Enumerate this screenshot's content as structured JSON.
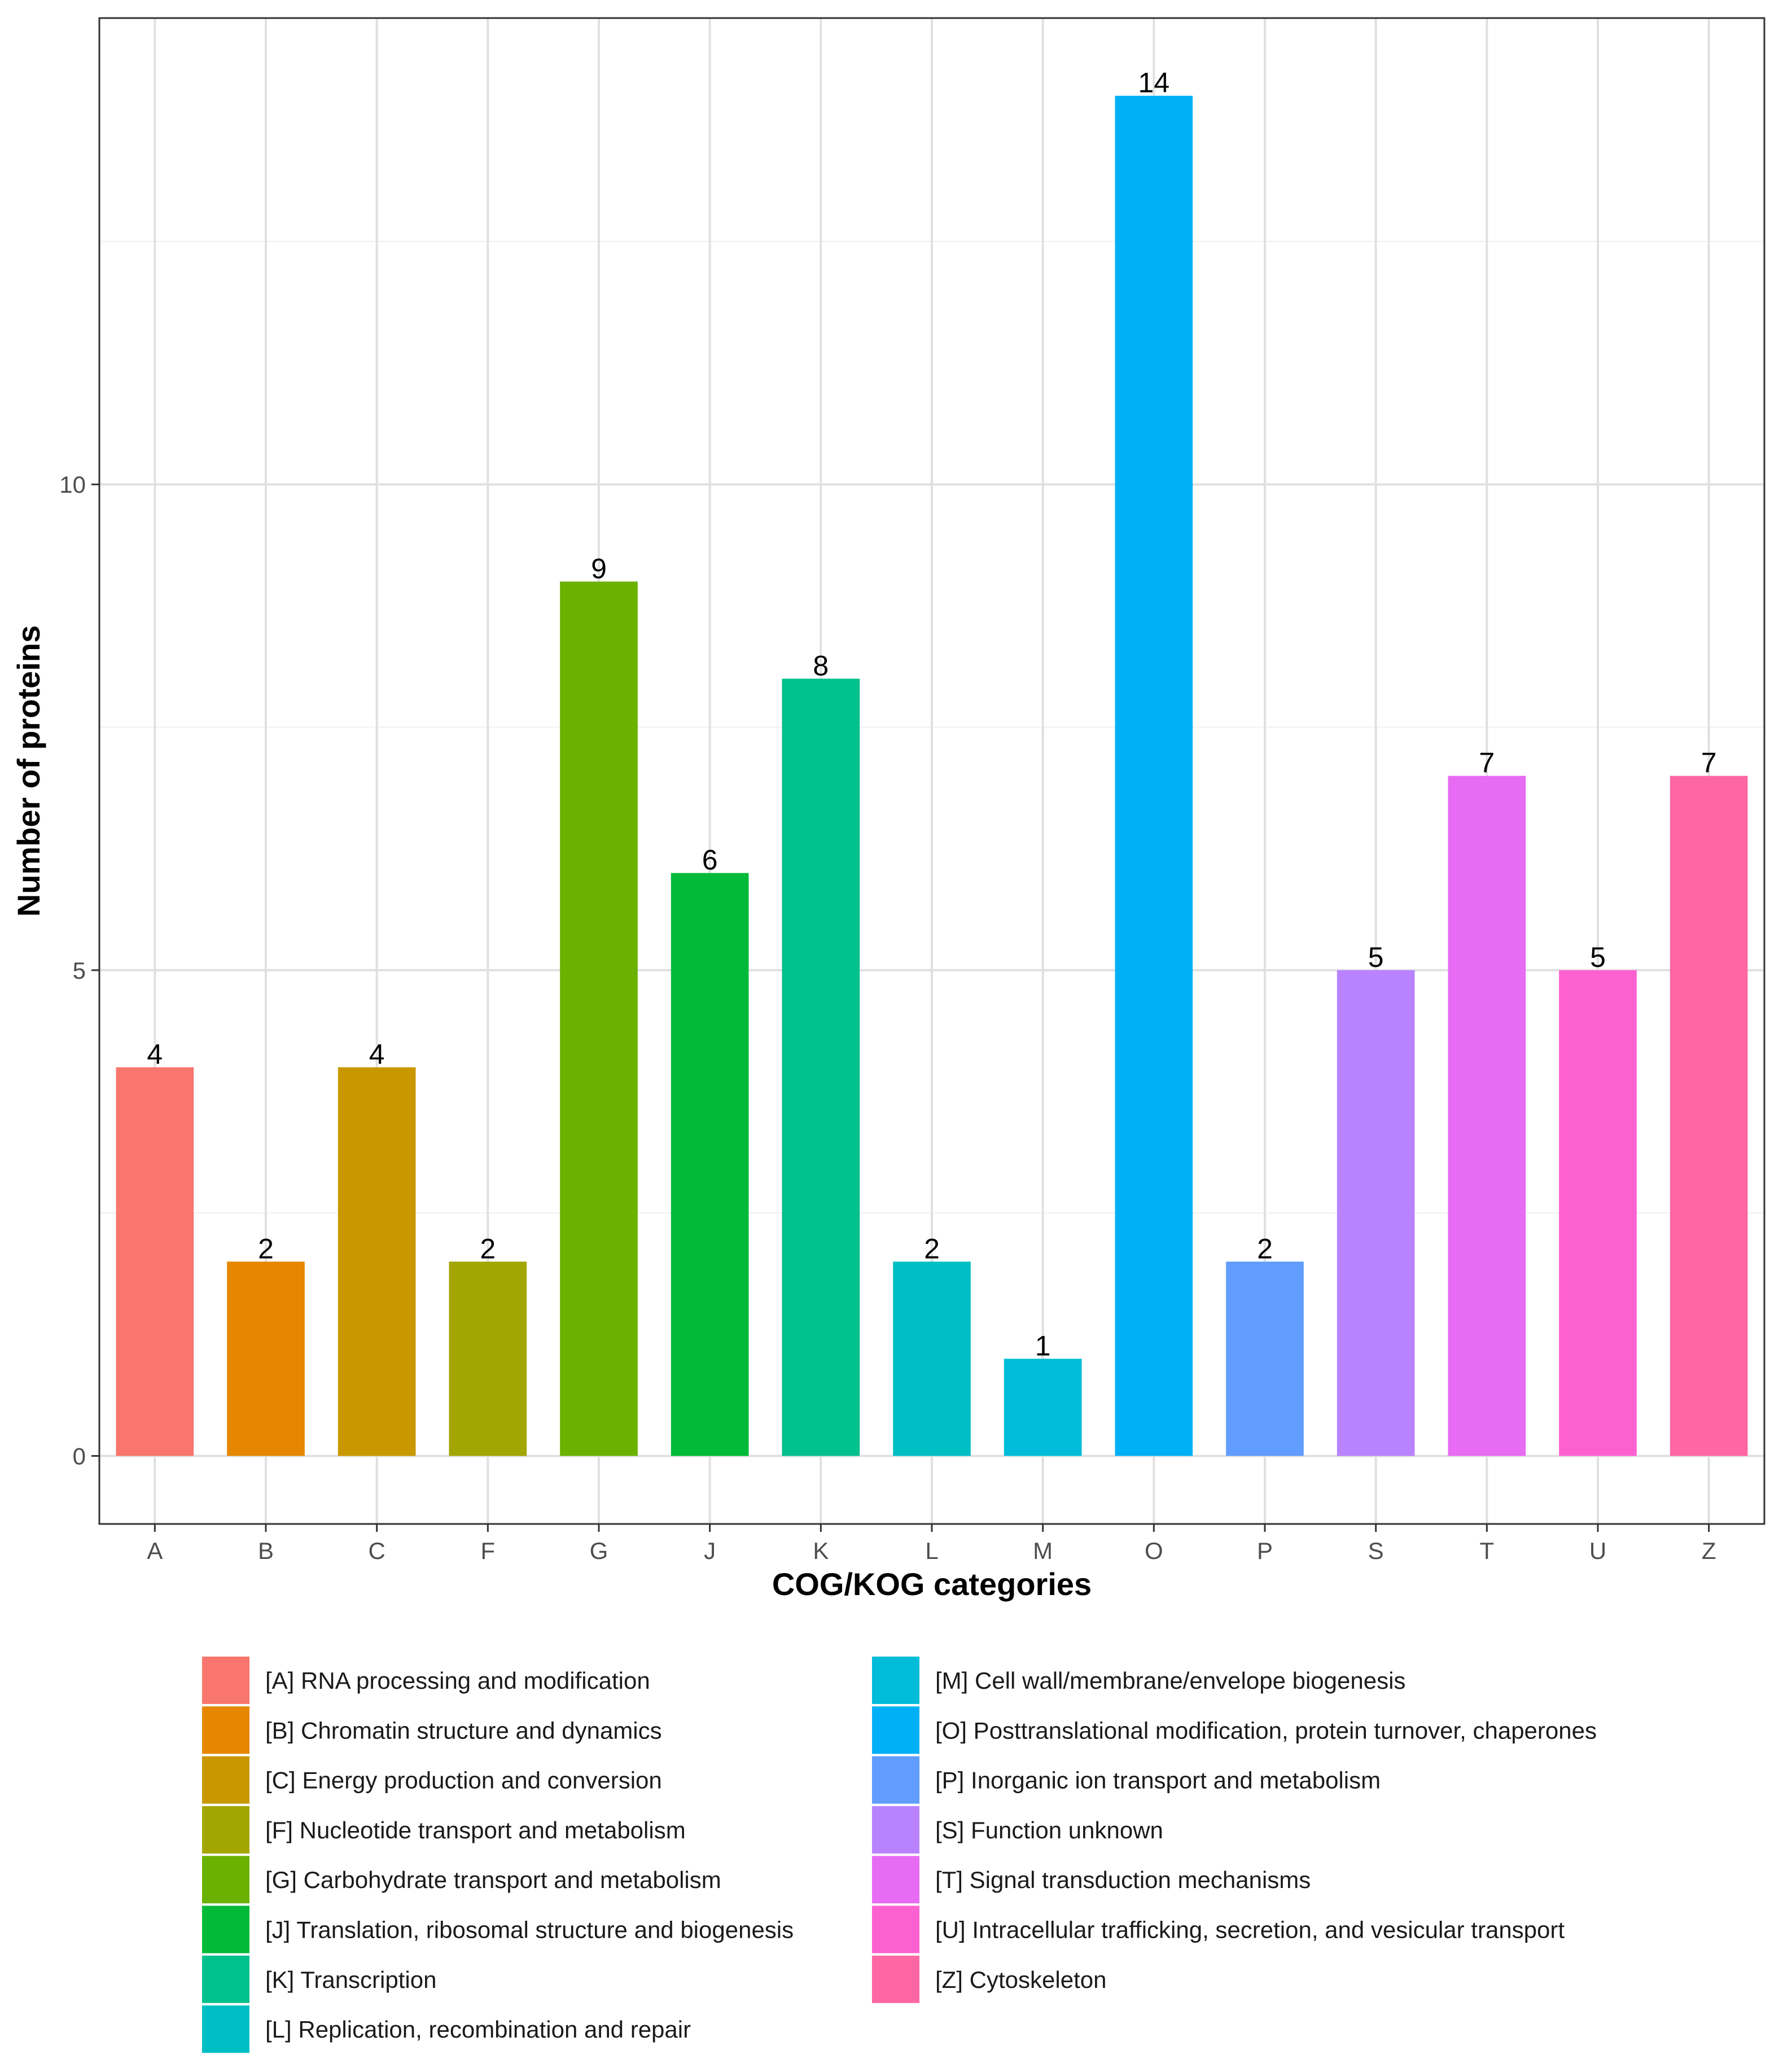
{
  "chart_data": {
    "type": "bar",
    "xlabel": "COG/KOG categories",
    "ylabel": "Number of proteins",
    "ylim": [
      -0.7,
      14.8
    ],
    "yticks": [
      0,
      5,
      10
    ],
    "grid": true,
    "legend_position": "bottom",
    "categories": [
      "A",
      "B",
      "C",
      "F",
      "G",
      "J",
      "K",
      "L",
      "M",
      "O",
      "P",
      "S",
      "T",
      "U",
      "Z"
    ],
    "values": [
      4,
      2,
      4,
      2,
      9,
      6,
      8,
      2,
      1,
      14,
      2,
      5,
      7,
      5,
      7
    ],
    "colors": [
      "#F8766D",
      "#E58700",
      "#C99800",
      "#A3A500",
      "#6BB100",
      "#00BA38",
      "#00C08B",
      "#00BFC4",
      "#00BCD8",
      "#00B0F6",
      "#619CFF",
      "#B983FF",
      "#E76BF3",
      "#FD61D1",
      "#FF67A4"
    ],
    "legend": [
      "[A] RNA processing and modification",
      "[B] Chromatin structure and dynamics",
      "[C] Energy production and conversion",
      "[F] Nucleotide transport and metabolism",
      "[G] Carbohydrate transport and metabolism",
      "[J] Translation, ribosomal structure and biogenesis",
      "[K] Transcription",
      "[L] Replication, recombination and repair",
      "[M] Cell wall/membrane/envelope biogenesis",
      "[O] Posttranslational modification, protein turnover, chaperones",
      "[P] Inorganic ion transport and metabolism",
      "[S] Function unknown",
      "[T] Signal transduction mechanisms",
      "[U] Intracellular trafficking, secretion, and vesicular transport",
      "[Z] Cytoskeleton"
    ]
  }
}
